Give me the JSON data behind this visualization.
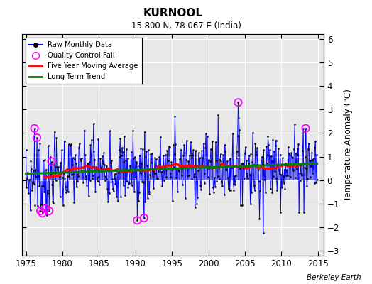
{
  "title": "KURNOOL",
  "subtitle": "15.800 N, 78.067 E (India)",
  "ylabel": "Temperature Anomaly (°C)",
  "xlim": [
    1974.5,
    2015.8
  ],
  "ylim": [
    -3.2,
    6.2
  ],
  "yticks": [
    -3,
    -2,
    -1,
    0,
    1,
    2,
    3,
    4,
    5,
    6
  ],
  "xticks": [
    1975,
    1980,
    1985,
    1990,
    1995,
    2000,
    2005,
    2010,
    2015
  ],
  "background_color": "#ffffff",
  "plot_bg_color": "#e8e8e8",
  "line_color": "blue",
  "ma_color": "red",
  "trend_color": "green",
  "qc_color": "magenta",
  "credit": "Berkeley Earth",
  "legend_labels": [
    "Raw Monthly Data",
    "Quality Control Fail",
    "Five Year Moving Average",
    "Long-Term Trend"
  ]
}
